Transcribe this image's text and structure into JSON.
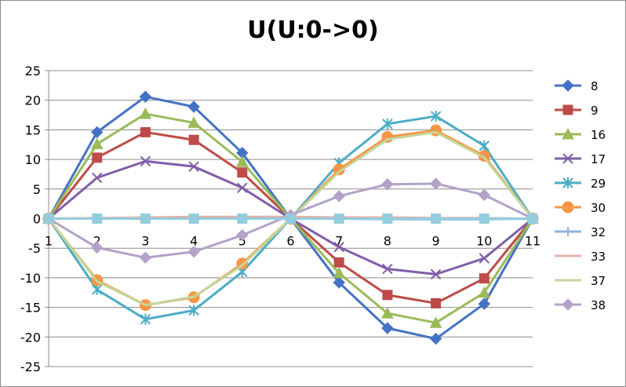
{
  "chart_data": {
    "type": "line",
    "title": "U(U:0->0)",
    "xlabel": "",
    "ylabel": "",
    "x": [
      "1",
      "2",
      "3",
      "4",
      "5",
      "6",
      "7",
      "8",
      "9",
      "10",
      "11"
    ],
    "ylim": [
      -25,
      25
    ],
    "yticks": [
      -25,
      -20,
      -15,
      -10,
      -5,
      0,
      5,
      10,
      15,
      20,
      25
    ],
    "grid": "horizontal",
    "legend_position": "right",
    "series": [
      {
        "name": "8",
        "color": "#4472c4",
        "marker": "diamond",
        "values": [
          0,
          14.6,
          20.6,
          18.9,
          11.1,
          0,
          -10.8,
          -18.5,
          -20.3,
          -14.4,
          0
        ]
      },
      {
        "name": "9",
        "color": "#be4b48",
        "marker": "square",
        "values": [
          0,
          10.3,
          14.6,
          13.3,
          7.8,
          0,
          -7.4,
          -12.9,
          -14.3,
          -10.1,
          0
        ]
      },
      {
        "name": "16",
        "color": "#9bbb59",
        "marker": "triangle",
        "values": [
          0,
          12.6,
          17.7,
          16.2,
          9.6,
          0,
          -9.2,
          -16.0,
          -17.6,
          -12.5,
          0
        ]
      },
      {
        "name": "17",
        "color": "#7f5ea8",
        "marker": "x",
        "values": [
          0,
          6.9,
          9.7,
          8.8,
          5.2,
          0,
          -4.8,
          -8.5,
          -9.4,
          -6.7,
          0
        ]
      },
      {
        "name": "29",
        "color": "#4bacc6",
        "marker": "star",
        "values": [
          0,
          -12.0,
          -17.0,
          -15.5,
          -9.0,
          0,
          9.4,
          16.0,
          17.3,
          12.3,
          0
        ]
      },
      {
        "name": "30",
        "color": "#f79646",
        "marker": "circle",
        "values": [
          0,
          -10.4,
          -14.6,
          -13.3,
          -7.6,
          0,
          8.3,
          13.8,
          14.9,
          10.6,
          0
        ]
      },
      {
        "name": "32",
        "color": "#8db3e2",
        "marker": "plus",
        "values": [
          0,
          0,
          0.1,
          0.1,
          0.1,
          0,
          0,
          -0.1,
          -0.1,
          -0.1,
          0
        ]
      },
      {
        "name": "33",
        "color": "#e6b0ac",
        "marker": "none",
        "values": [
          0,
          0.1,
          0.2,
          0.3,
          0.3,
          0.3,
          0.2,
          0.2,
          0.1,
          0.1,
          0
        ]
      },
      {
        "name": "37",
        "color": "#c3d69b",
        "marker": "none",
        "values": [
          0,
          -10.6,
          -14.6,
          -13.2,
          -7.9,
          0,
          7.9,
          13.4,
          14.6,
          10.3,
          0
        ]
      },
      {
        "name": "38",
        "color": "#b3a2c7",
        "marker": "diamond",
        "values": [
          0,
          -4.9,
          -6.6,
          -5.6,
          -2.8,
          0.6,
          3.8,
          5.8,
          5.9,
          4.0,
          0
        ]
      },
      {
        "name": "",
        "color": "#93cddd",
        "marker": "square",
        "values": [
          0,
          0,
          0,
          0,
          0,
          0,
          0,
          0,
          0,
          0,
          0
        ]
      }
    ]
  }
}
